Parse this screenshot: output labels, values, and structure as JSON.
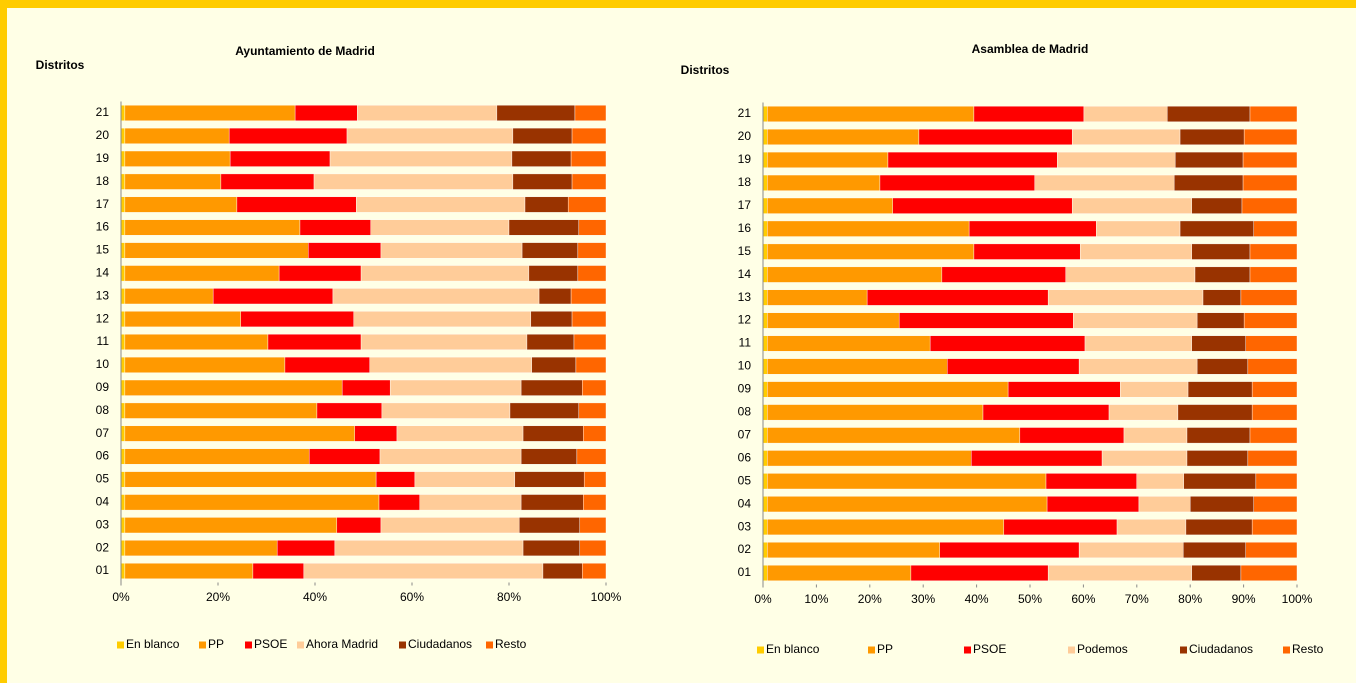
{
  "chart_data": [
    {
      "type": "stacked-bar-horizontal",
      "title": "Ayuntamiento de Madrid",
      "y_label": "Distritos",
      "categories": [
        "01",
        "02",
        "03",
        "04",
        "05",
        "06",
        "07",
        "08",
        "09",
        "10",
        "11",
        "12",
        "13",
        "14",
        "15",
        "16",
        "17",
        "18",
        "19",
        "20",
        "21"
      ],
      "series": [
        {
          "name": "En blanco",
          "color": "#FFCC00",
          "values": [
            0.8,
            0.8,
            0.8,
            0.8,
            0.8,
            0.8,
            0.8,
            0.8,
            0.8,
            0.8,
            0.8,
            0.8,
            0.8,
            0.8,
            0.8,
            0.8,
            0.8,
            0.8,
            0.8,
            0.8,
            0.8
          ]
        },
        {
          "name": "PP",
          "color": "#FF9900",
          "values": [
            26.4,
            31.4,
            43.7,
            52.4,
            51.8,
            38.0,
            47.4,
            39.6,
            44.8,
            33.0,
            29.5,
            23.9,
            18.2,
            31.8,
            37.8,
            36.1,
            23.1,
            19.8,
            21.7,
            21.5,
            35.1
          ]
        },
        {
          "name": "PSOE",
          "color": "#FF0000",
          "values": [
            10.5,
            11.9,
            9.1,
            8.4,
            8.0,
            14.6,
            8.7,
            13.4,
            9.9,
            17.5,
            19.2,
            23.3,
            24.7,
            16.9,
            15.0,
            14.6,
            24.6,
            19.2,
            20.6,
            24.3,
            12.8
          ]
        },
        {
          "name": "Ahora Madrid",
          "color": "#FFCC99",
          "values": [
            49.3,
            38.8,
            28.5,
            20.9,
            20.6,
            29.1,
            26.0,
            26.4,
            27.0,
            33.4,
            34.2,
            36.5,
            42.5,
            34.6,
            29.1,
            28.5,
            34.8,
            41.0,
            37.5,
            34.2,
            28.8
          ]
        },
        {
          "name": "Ciudadanos",
          "color": "#993300",
          "values": [
            8.1,
            11.7,
            12.5,
            12.8,
            14.3,
            11.5,
            12.4,
            14.2,
            12.6,
            9.1,
            9.7,
            8.5,
            6.6,
            10.1,
            11.5,
            14.4,
            8.9,
            12.2,
            12.2,
            12.2,
            16.1
          ]
        },
        {
          "name": "Resto",
          "color": "#FF6600",
          "values": [
            4.9,
            5.4,
            5.4,
            4.7,
            4.5,
            6.0,
            4.7,
            5.6,
            4.9,
            6.2,
            6.6,
            7.0,
            7.2,
            5.8,
            5.8,
            5.6,
            7.8,
            7.0,
            7.2,
            7.0,
            6.4
          ]
        }
      ],
      "xlim": [
        0,
        100
      ],
      "xticks": [
        {
          "value": 0,
          "label": "0%"
        },
        {
          "value": 20,
          "label": "20%"
        },
        {
          "value": 40,
          "label": "40%"
        },
        {
          "value": 60,
          "label": "60%"
        },
        {
          "value": 80,
          "label": "80%"
        },
        {
          "value": 100,
          "label": "100%"
        }
      ],
      "legend": "bottom"
    },
    {
      "type": "stacked-bar-horizontal",
      "title": "Asamblea de Madrid",
      "y_label": "Distritos",
      "categories": [
        "01",
        "02",
        "03",
        "04",
        "05",
        "06",
        "07",
        "08",
        "09",
        "10",
        "11",
        "12",
        "13",
        "14",
        "15",
        "16",
        "17",
        "18",
        "19",
        "20",
        "21"
      ],
      "series": [
        {
          "name": "En blanco",
          "color": "#FFCC00",
          "values": [
            0.8,
            0.8,
            0.8,
            0.8,
            0.8,
            0.8,
            0.8,
            0.8,
            0.8,
            0.8,
            0.8,
            0.8,
            0.8,
            0.8,
            0.8,
            0.8,
            0.8,
            0.8,
            0.8,
            0.8,
            0.8
          ]
        },
        {
          "name": "PP",
          "color": "#FF9900",
          "values": [
            26.9,
            32.3,
            44.3,
            52.4,
            52.2,
            38.2,
            47.3,
            40.4,
            45.1,
            33.7,
            30.5,
            24.7,
            18.7,
            32.7,
            38.7,
            37.8,
            23.5,
            21.1,
            22.6,
            28.4,
            38.7
          ]
        },
        {
          "name": "PSOE",
          "color": "#FF0000",
          "values": [
            25.7,
            26.1,
            21.2,
            17.2,
            17.0,
            24.5,
            19.5,
            23.6,
            21.0,
            24.7,
            29.0,
            32.6,
            33.9,
            23.2,
            19.9,
            23.8,
            33.6,
            29.0,
            31.7,
            28.7,
            20.6
          ]
        },
        {
          "name": "Podemos",
          "color": "#FFCC99",
          "values": [
            26.9,
            19.5,
            12.9,
            9.6,
            8.8,
            15.9,
            11.8,
            12.9,
            12.7,
            22.1,
            20.0,
            23.2,
            29.0,
            24.2,
            20.9,
            15.7,
            22.4,
            26.1,
            22.1,
            20.2,
            15.6
          ]
        },
        {
          "name": "Ciudadanos",
          "color": "#993300",
          "values": [
            9.2,
            11.7,
            12.4,
            11.9,
            13.5,
            11.4,
            11.8,
            13.9,
            12.0,
            9.5,
            10.1,
            8.8,
            7.1,
            10.3,
            10.9,
            13.8,
            9.4,
            12.9,
            12.7,
            12.0,
            15.5
          ]
        },
        {
          "name": "Resto",
          "color": "#FF6600",
          "values": [
            10.5,
            9.6,
            8.4,
            8.1,
            7.7,
            9.2,
            8.8,
            8.4,
            8.4,
            9.2,
            9.6,
            9.9,
            10.5,
            8.8,
            8.8,
            8.1,
            10.3,
            10.1,
            10.1,
            9.9,
            8.8
          ]
        }
      ],
      "xlim": [
        0,
        100
      ],
      "xticks": [
        {
          "value": 0,
          "label": "0%"
        },
        {
          "value": 10,
          "label": "10%"
        },
        {
          "value": 20,
          "label": "20%"
        },
        {
          "value": 30,
          "label": "30%"
        },
        {
          "value": 40,
          "label": "40%"
        },
        {
          "value": 50,
          "label": "50%"
        },
        {
          "value": 60,
          "label": "60%"
        },
        {
          "value": 70,
          "label": "70%"
        },
        {
          "value": 80,
          "label": "80%"
        },
        {
          "value": 90,
          "label": "90%"
        },
        {
          "value": 100,
          "label": "100%"
        }
      ],
      "legend": "bottom"
    }
  ]
}
